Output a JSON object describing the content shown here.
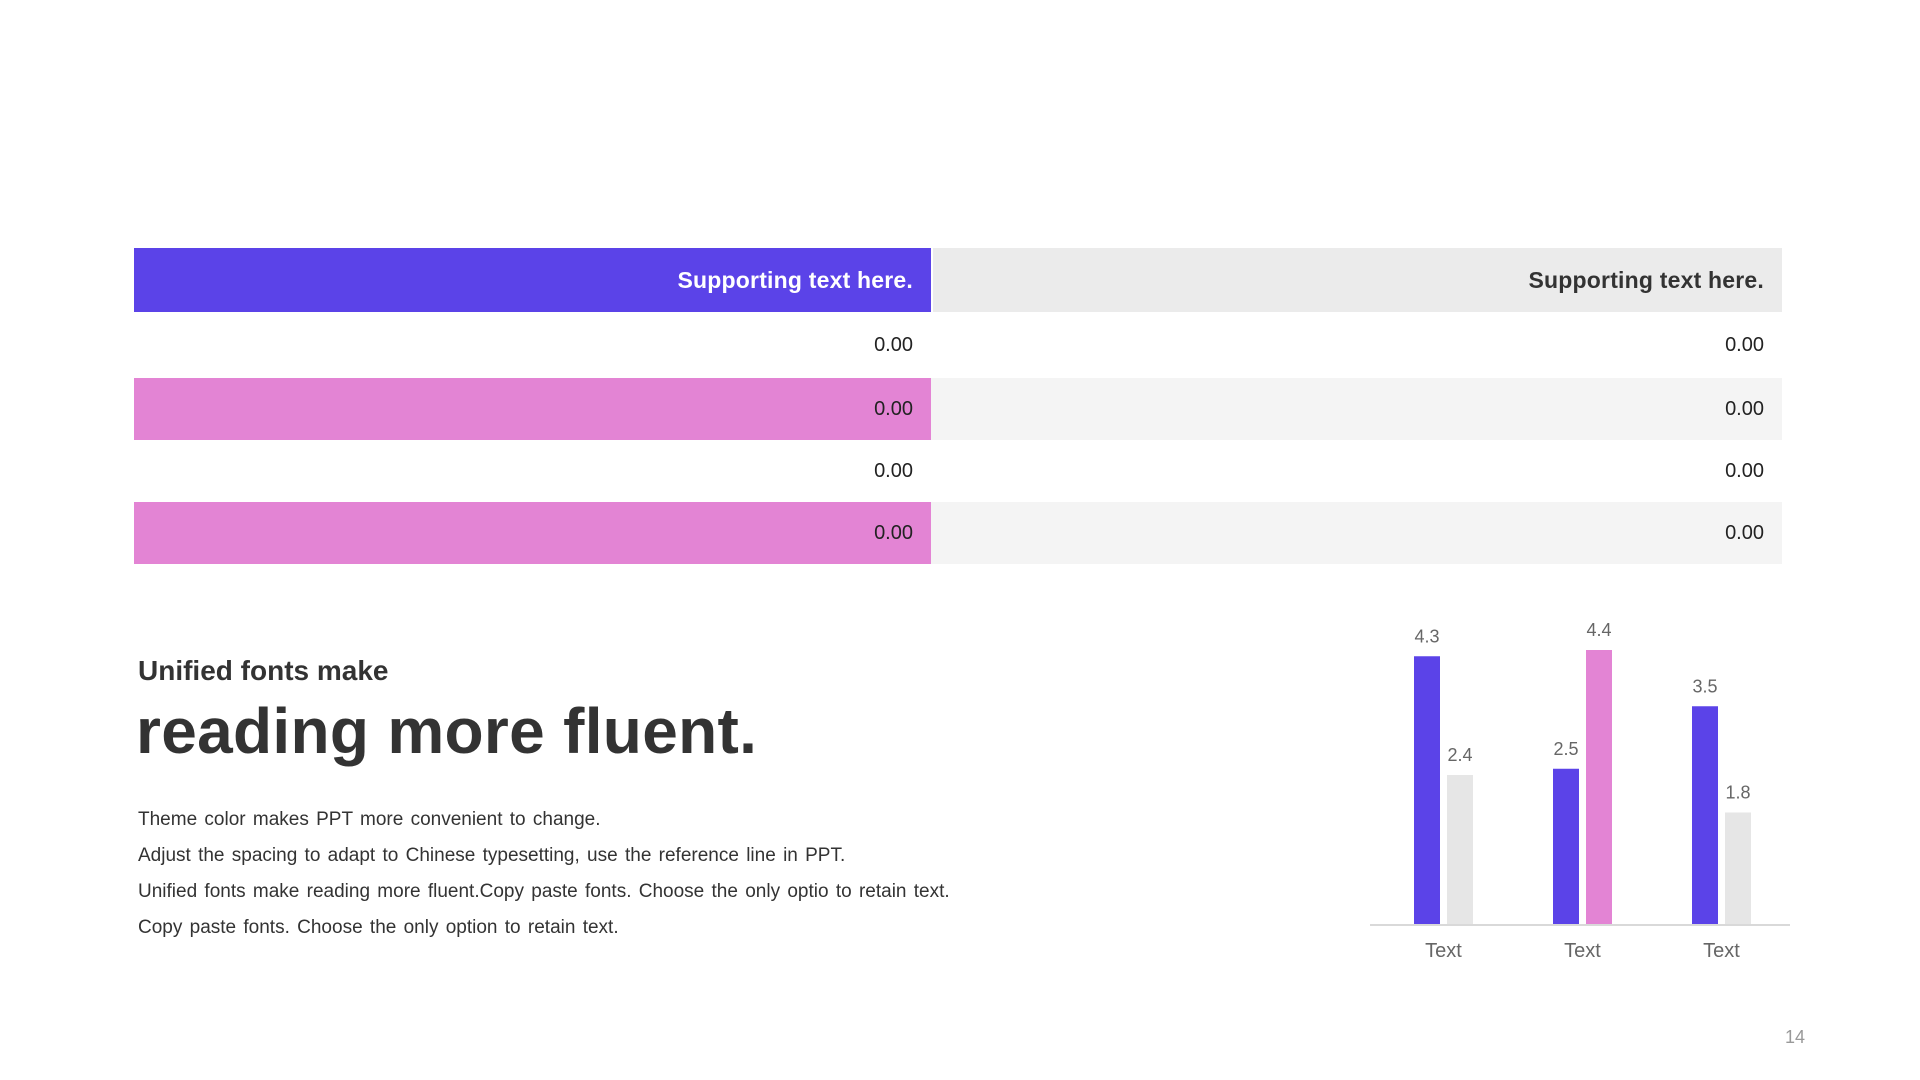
{
  "colors": {
    "accent_purple": "#5b43e8",
    "accent_pink": "#e384d4",
    "header_gray": "#ebebeb",
    "row_gray": "#f4f4f4",
    "bar_gray": "#e6e6e6",
    "axis_gray": "#d9d9d9"
  },
  "table": {
    "headers": [
      "Supporting text here.",
      "Supporting text here."
    ],
    "rows": [
      [
        "0.00",
        "0.00"
      ],
      [
        "0.00",
        "0.00"
      ],
      [
        "0.00",
        "0.00"
      ],
      [
        "0.00",
        "0.00"
      ]
    ]
  },
  "text": {
    "subtitle": "Unified fonts make",
    "title": "reading more fluent.",
    "lines": [
      "Theme color makes PPT more convenient  to change.",
      "Adjust the spacing to adapt to Chinese  typesetting, use the reference line in PPT.",
      "Unified  fonts make reading more fluent.Copy paste fonts. Choose the only optio to retain text.",
      "Copy paste  fonts. Choose the only option to retain text."
    ]
  },
  "chart_data": {
    "type": "bar",
    "categories": [
      "Text",
      "Text",
      "Text"
    ],
    "bar_pairs": [
      {
        "category": "Text",
        "first": 4.3,
        "second": 2.4,
        "second_color": "#e6e6e6"
      },
      {
        "category": "Text",
        "first": 2.5,
        "second": 4.4,
        "second_color": "#e384d4"
      },
      {
        "category": "Text",
        "first": 3.5,
        "second": 1.8,
        "second_color": "#e6e6e6"
      }
    ],
    "first_color": "#5b43e8",
    "ylim": [
      0,
      4.4
    ],
    "title": "",
    "xlabel": "",
    "ylabel": "",
    "grid": false,
    "legend": "none"
  },
  "page_number": "14"
}
